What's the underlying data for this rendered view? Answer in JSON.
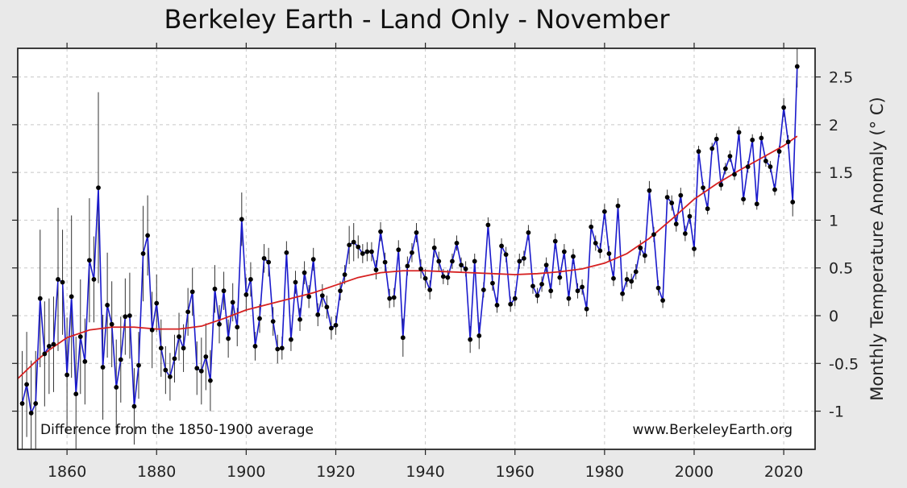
{
  "chart_data": {
    "type": "line",
    "title": "Berkeley Earth - Land Only - November",
    "xlabel": "",
    "ylabel": "Monthly Temperature Anomaly (° C)",
    "xlim": [
      1849,
      2027
    ],
    "ylim": [
      -1.4,
      2.8
    ],
    "x_ticks": [
      1860,
      1880,
      1900,
      1920,
      1940,
      1960,
      1980,
      2000,
      2020
    ],
    "y_ticks": [
      2.5,
      2,
      1.5,
      1,
      0.5,
      0,
      -0.5,
      -1
    ],
    "x_tick_labels": [
      "1860",
      "1880",
      "1900",
      "1920",
      "1940",
      "1960",
      "1980",
      "2000",
      "2020"
    ],
    "y_tick_labels": [
      "2.5",
      "2",
      "1.5",
      "1",
      "0.5",
      "0",
      "-0.5",
      "-1"
    ],
    "grid": true,
    "annotations": {
      "left": "Difference from the 1850-1900 average",
      "right": "www.BerkeleyEarth.org"
    },
    "colors": {
      "series": "#1a1acc",
      "smooth": "#d62020",
      "points": "#000000",
      "errorbars": "#333333"
    },
    "series": [
      {
        "x_start": 1850,
        "values": [
          -0.92,
          -0.72,
          -1.02,
          -0.92,
          0.18,
          -0.4,
          -0.32,
          -0.3,
          0.38,
          0.35,
          -0.62,
          0.2,
          -0.82,
          -0.22,
          -0.48,
          0.58,
          0.38,
          1.34,
          -0.54,
          0.11,
          -0.09,
          -0.75,
          -0.46,
          -0.01,
          0.0,
          -0.95,
          -0.52,
          0.65,
          0.84,
          -0.15,
          0.13,
          -0.34,
          -0.57,
          -0.64,
          -0.45,
          -0.22,
          -0.34,
          0.04,
          0.25,
          -0.55,
          -0.58,
          -0.43,
          -0.68,
          0.28,
          -0.09,
          0.26,
          -0.24,
          0.14,
          -0.12,
          1.01,
          0.22,
          0.38,
          -0.32,
          -0.03,
          0.6,
          0.56,
          -0.06,
          -0.35,
          -0.34,
          0.66,
          -0.25,
          0.35,
          -0.04,
          0.45,
          0.2,
          0.59,
          0.01,
          0.21,
          0.09,
          -0.13,
          -0.1,
          0.26,
          0.43,
          0.74,
          0.77,
          0.72,
          0.65,
          0.67,
          0.67,
          0.48,
          0.88,
          0.56,
          0.18,
          0.19,
          0.69,
          -0.23,
          0.52,
          0.66,
          0.87,
          0.49,
          0.39,
          0.27,
          0.71,
          0.57,
          0.41,
          0.4,
          0.57,
          0.76,
          0.53,
          0.49,
          -0.25,
          0.57,
          -0.21,
          0.27,
          0.95,
          0.34,
          0.11,
          0.73,
          0.64,
          0.12,
          0.18,
          0.57,
          0.6,
          0.87,
          0.31,
          0.21,
          0.33,
          0.53,
          0.26,
          0.78,
          0.4,
          0.67,
          0.18,
          0.62,
          0.26,
          0.3,
          0.07,
          0.93,
          0.76,
          0.68,
          1.09,
          0.65,
          0.39,
          1.15,
          0.23,
          0.38,
          0.36,
          0.46,
          0.71,
          0.63,
          1.31,
          0.85,
          0.29,
          0.16,
          1.24,
          1.18,
          0.96,
          1.26,
          0.86,
          1.04,
          0.7,
          1.72,
          1.34,
          1.12,
          1.75,
          1.85,
          1.37,
          1.54,
          1.67,
          1.48,
          1.92,
          1.22,
          1.56,
          1.84,
          1.17,
          1.86,
          1.62,
          1.56,
          1.32,
          1.72,
          2.18,
          1.82,
          1.19,
          2.61
        ],
        "uncertainty": [
          0.55,
          0.55,
          0.55,
          0.55,
          0.72,
          0.55,
          0.5,
          0.5,
          0.75,
          0.55,
          0.6,
          0.85,
          0.6,
          0.6,
          0.45,
          0.65,
          0.45,
          1.0,
          0.55,
          0.55,
          0.45,
          0.5,
          0.45,
          0.4,
          0.45,
          0.4,
          0.35,
          0.5,
          0.42,
          0.4,
          0.3,
          0.3,
          0.25,
          0.25,
          0.25,
          0.25,
          0.25,
          0.25,
          0.25,
          0.28,
          0.35,
          0.35,
          0.32,
          0.25,
          0.2,
          0.2,
          0.2,
          0.2,
          0.2,
          0.28,
          0.18,
          0.18,
          0.15,
          0.15,
          0.15,
          0.15,
          0.15,
          0.15,
          0.12,
          0.12,
          0.12,
          0.12,
          0.12,
          0.12,
          0.12,
          0.12,
          0.12,
          0.12,
          0.12,
          0.12,
          0.1,
          0.1,
          0.1,
          0.2,
          0.2,
          0.12,
          0.1,
          0.1,
          0.1,
          0.1,
          0.1,
          0.1,
          0.1,
          0.1,
          0.1,
          0.2,
          0.1,
          0.1,
          0.1,
          0.1,
          0.1,
          0.1,
          0.1,
          0.1,
          0.08,
          0.08,
          0.08,
          0.08,
          0.08,
          0.08,
          0.14,
          0.08,
          0.14,
          0.08,
          0.08,
          0.08,
          0.08,
          0.08,
          0.08,
          0.08,
          0.08,
          0.08,
          0.08,
          0.08,
          0.08,
          0.08,
          0.08,
          0.08,
          0.08,
          0.08,
          0.08,
          0.08,
          0.08,
          0.08,
          0.08,
          0.08,
          0.08,
          0.08,
          0.08,
          0.08,
          0.08,
          0.08,
          0.08,
          0.08,
          0.08,
          0.08,
          0.08,
          0.08,
          0.08,
          0.08,
          0.1,
          0.08,
          0.08,
          0.08,
          0.08,
          0.08,
          0.08,
          0.08,
          0.08,
          0.08,
          0.08,
          0.06,
          0.06,
          0.06,
          0.06,
          0.06,
          0.06,
          0.06,
          0.06,
          0.06,
          0.06,
          0.06,
          0.06,
          0.06,
          0.06,
          0.06,
          0.06,
          0.06,
          0.06,
          0.06,
          0.1,
          0.07,
          0.15,
          0.22
        ]
      },
      {
        "x": [
          1849,
          1853,
          1856,
          1860,
          1865,
          1870,
          1875,
          1880,
          1885,
          1890,
          1895,
          1900,
          1905,
          1910,
          1915,
          1920,
          1925,
          1930,
          1935,
          1940,
          1945,
          1950,
          1955,
          1960,
          1965,
          1970,
          1975,
          1980,
          1985,
          1990,
          1995,
          2000,
          2005,
          2010,
          2015,
          2020,
          2023
        ],
        "values": [
          -0.66,
          -0.48,
          -0.36,
          -0.23,
          -0.15,
          -0.12,
          -0.12,
          -0.14,
          -0.14,
          -0.11,
          -0.03,
          0.06,
          0.12,
          0.18,
          0.24,
          0.32,
          0.4,
          0.45,
          0.47,
          0.47,
          0.46,
          0.45,
          0.44,
          0.43,
          0.44,
          0.46,
          0.49,
          0.55,
          0.65,
          0.81,
          1.01,
          1.22,
          1.38,
          1.52,
          1.65,
          1.78,
          1.88
        ]
      }
    ]
  }
}
